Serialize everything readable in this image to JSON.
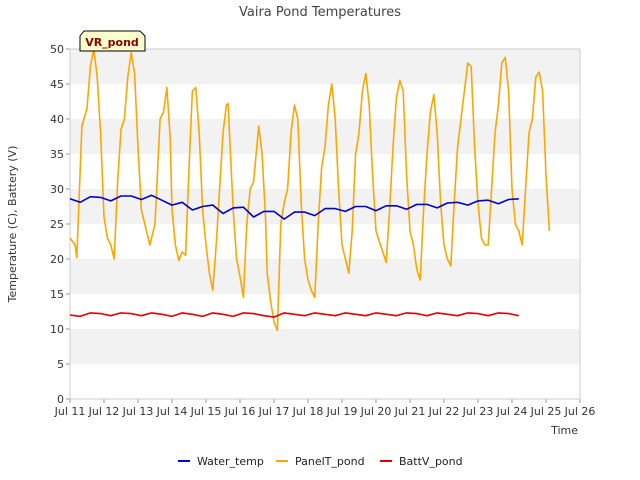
{
  "chart_data": {
    "type": "line",
    "title": "Vaira Pond Temperatures",
    "xlabel": "Time",
    "ylabel": "Temperature (C), Battery (V)",
    "site_label": "VR_pond",
    "xlim": [
      11,
      26
    ],
    "ylim": [
      0,
      50
    ],
    "x_ticks": [
      {
        "x": 11,
        "label": "Jul 11"
      },
      {
        "x": 12,
        "label": "Jul 12"
      },
      {
        "x": 13,
        "label": "Jul 13"
      },
      {
        "x": 14,
        "label": "Jul 14"
      },
      {
        "x": 15,
        "label": "Jul 15"
      },
      {
        "x": 16,
        "label": "Jul 16"
      },
      {
        "x": 17,
        "label": "Jul 17"
      },
      {
        "x": 18,
        "label": "Jul 18"
      },
      {
        "x": 19,
        "label": "Jul 19"
      },
      {
        "x": 20,
        "label": "Jul 20"
      },
      {
        "x": 21,
        "label": "Jul 21"
      },
      {
        "x": 22,
        "label": "Jul 22"
      },
      {
        "x": 23,
        "label": "Jul 23"
      },
      {
        "x": 24,
        "label": "Jul 24"
      },
      {
        "x": 25,
        "label": "Jul 25"
      },
      {
        "x": 26,
        "label": "Jul 26"
      }
    ],
    "y_ticks": [
      0,
      5,
      10,
      15,
      20,
      25,
      30,
      35,
      40,
      45,
      50
    ],
    "grid": "horizontal bands",
    "legend_position": "bottom",
    "series": [
      {
        "name": "Water_temp",
        "color": "#0000cc",
        "points": [
          [
            11.0,
            28.6
          ],
          [
            11.3,
            28.1
          ],
          [
            11.6,
            28.9
          ],
          [
            11.9,
            28.8
          ],
          [
            12.2,
            28.3
          ],
          [
            12.5,
            29.0
          ],
          [
            12.8,
            29.0
          ],
          [
            13.1,
            28.5
          ],
          [
            13.4,
            29.1
          ],
          [
            13.7,
            28.4
          ],
          [
            14.0,
            27.7
          ],
          [
            14.3,
            28.1
          ],
          [
            14.6,
            27.0
          ],
          [
            14.9,
            27.5
          ],
          [
            15.2,
            27.7
          ],
          [
            15.5,
            26.5
          ],
          [
            15.8,
            27.3
          ],
          [
            16.1,
            27.4
          ],
          [
            16.4,
            26.0
          ],
          [
            16.7,
            26.8
          ],
          [
            17.0,
            26.8
          ],
          [
            17.3,
            25.7
          ],
          [
            17.6,
            26.7
          ],
          [
            17.9,
            26.7
          ],
          [
            18.2,
            26.2
          ],
          [
            18.5,
            27.2
          ],
          [
            18.8,
            27.2
          ],
          [
            19.1,
            26.8
          ],
          [
            19.4,
            27.5
          ],
          [
            19.7,
            27.5
          ],
          [
            20.0,
            26.9
          ],
          [
            20.3,
            27.6
          ],
          [
            20.6,
            27.6
          ],
          [
            20.9,
            27.1
          ],
          [
            21.2,
            27.8
          ],
          [
            21.5,
            27.8
          ],
          [
            21.8,
            27.3
          ],
          [
            22.1,
            28.0
          ],
          [
            22.4,
            28.1
          ],
          [
            22.7,
            27.7
          ],
          [
            23.0,
            28.3
          ],
          [
            23.3,
            28.4
          ],
          [
            23.6,
            27.9
          ],
          [
            23.9,
            28.5
          ],
          [
            24.2,
            28.6
          ]
        ]
      },
      {
        "name": "PanelT_pond",
        "color": "#ffa500",
        "points": [
          [
            11.0,
            23.0
          ],
          [
            11.15,
            22.0
          ],
          [
            11.2,
            20.2
          ],
          [
            11.35,
            39.0
          ],
          [
            11.5,
            41.5
          ],
          [
            11.6,
            47.5
          ],
          [
            11.7,
            50.0
          ],
          [
            11.8,
            46.0
          ],
          [
            11.9,
            38.0
          ],
          [
            12.0,
            26.0
          ],
          [
            12.1,
            23.0
          ],
          [
            12.2,
            22.0
          ],
          [
            12.3,
            20.0
          ],
          [
            12.4,
            31.0
          ],
          [
            12.5,
            38.5
          ],
          [
            12.6,
            40.0
          ],
          [
            12.7,
            46.0
          ],
          [
            12.8,
            49.5
          ],
          [
            12.9,
            46.5
          ],
          [
            13.0,
            36.0
          ],
          [
            13.1,
            27.0
          ],
          [
            13.2,
            25.0
          ],
          [
            13.35,
            22.0
          ],
          [
            13.5,
            25.0
          ],
          [
            13.65,
            40.0
          ],
          [
            13.75,
            41.0
          ],
          [
            13.85,
            44.5
          ],
          [
            13.95,
            37.0
          ],
          [
            14.0,
            27.0
          ],
          [
            14.1,
            22.0
          ],
          [
            14.2,
            19.8
          ],
          [
            14.3,
            21.0
          ],
          [
            14.4,
            20.5
          ],
          [
            14.5,
            33.0
          ],
          [
            14.6,
            44.0
          ],
          [
            14.7,
            44.5
          ],
          [
            14.8,
            38.0
          ],
          [
            14.9,
            27.0
          ],
          [
            15.0,
            22.0
          ],
          [
            15.1,
            18.0
          ],
          [
            15.2,
            15.5
          ],
          [
            15.3,
            22.0
          ],
          [
            15.4,
            30.0
          ],
          [
            15.5,
            38.0
          ],
          [
            15.6,
            42.0
          ],
          [
            15.65,
            42.2
          ],
          [
            15.7,
            37.0
          ],
          [
            15.8,
            27.0
          ],
          [
            15.9,
            20.0
          ],
          [
            16.0,
            17.5
          ],
          [
            16.1,
            14.5
          ],
          [
            16.2,
            25.0
          ],
          [
            16.3,
            30.0
          ],
          [
            16.4,
            31.0
          ],
          [
            16.55,
            39.0
          ],
          [
            16.65,
            35.0
          ],
          [
            16.75,
            26.0
          ],
          [
            16.8,
            18.0
          ],
          [
            16.9,
            14.0
          ],
          [
            17.0,
            11.0
          ],
          [
            17.1,
            9.8
          ],
          [
            17.2,
            25.0
          ],
          [
            17.3,
            28.0
          ],
          [
            17.4,
            30.0
          ],
          [
            17.5,
            38.0
          ],
          [
            17.6,
            42.0
          ],
          [
            17.7,
            40.0
          ],
          [
            17.8,
            28.0
          ],
          [
            17.9,
            20.0
          ],
          [
            18.0,
            17.0
          ],
          [
            18.1,
            15.5
          ],
          [
            18.2,
            14.5
          ],
          [
            18.3,
            25.0
          ],
          [
            18.4,
            33.0
          ],
          [
            18.5,
            36.0
          ],
          [
            18.6,
            42.0
          ],
          [
            18.7,
            45.0
          ],
          [
            18.8,
            40.0
          ],
          [
            18.9,
            30.0
          ],
          [
            19.0,
            22.0
          ],
          [
            19.1,
            20.0
          ],
          [
            19.2,
            18.0
          ],
          [
            19.3,
            24.0
          ],
          [
            19.4,
            35.0
          ],
          [
            19.5,
            38.0
          ],
          [
            19.6,
            44.0
          ],
          [
            19.7,
            46.5
          ],
          [
            19.8,
            42.0
          ],
          [
            19.9,
            32.0
          ],
          [
            20.0,
            24.0
          ],
          [
            20.1,
            22.5
          ],
          [
            20.2,
            21.0
          ],
          [
            20.3,
            19.5
          ],
          [
            20.4,
            27.0
          ],
          [
            20.5,
            36.0
          ],
          [
            20.6,
            43.0
          ],
          [
            20.7,
            45.5
          ],
          [
            20.8,
            44.0
          ],
          [
            20.9,
            32.0
          ],
          [
            21.0,
            24.0
          ],
          [
            21.1,
            22.0
          ],
          [
            21.2,
            18.5
          ],
          [
            21.3,
            17.0
          ],
          [
            21.4,
            27.0
          ],
          [
            21.5,
            35.0
          ],
          [
            21.6,
            41.0
          ],
          [
            21.7,
            43.5
          ],
          [
            21.8,
            38.0
          ],
          [
            21.9,
            28.0
          ],
          [
            22.0,
            22.0
          ],
          [
            22.1,
            20.0
          ],
          [
            22.2,
            19.0
          ],
          [
            22.3,
            28.0
          ],
          [
            22.4,
            36.0
          ],
          [
            22.5,
            40.0
          ],
          [
            22.6,
            44.0
          ],
          [
            22.7,
            48.0
          ],
          [
            22.8,
            47.5
          ],
          [
            22.9,
            36.0
          ],
          [
            23.0,
            28.0
          ],
          [
            23.1,
            23.0
          ],
          [
            23.2,
            22.0
          ],
          [
            23.3,
            22.0
          ],
          [
            23.4,
            30.0
          ],
          [
            23.5,
            38.0
          ],
          [
            23.6,
            42.0
          ],
          [
            23.7,
            48.0
          ],
          [
            23.8,
            48.8
          ],
          [
            23.9,
            44.0
          ],
          [
            24.0,
            30.0
          ],
          [
            24.1,
            25.0
          ],
          [
            24.2,
            24.0
          ],
          [
            24.3,
            22.0
          ],
          [
            24.4,
            30.0
          ],
          [
            24.5,
            38.0
          ],
          [
            24.6,
            40.0
          ],
          [
            24.7,
            46.0
          ],
          [
            24.8,
            46.7
          ],
          [
            24.9,
            44.0
          ],
          [
            25.0,
            32.0
          ],
          [
            25.1,
            24.0
          ]
        ]
      },
      {
        "name": "BattV_pond",
        "color": "#e00000",
        "points": [
          [
            11.0,
            12.0
          ],
          [
            11.3,
            11.8
          ],
          [
            11.6,
            12.3
          ],
          [
            11.9,
            12.2
          ],
          [
            12.2,
            11.9
          ],
          [
            12.5,
            12.3
          ],
          [
            12.8,
            12.2
          ],
          [
            13.1,
            11.9
          ],
          [
            13.4,
            12.3
          ],
          [
            13.7,
            12.1
          ],
          [
            14.0,
            11.8
          ],
          [
            14.3,
            12.3
          ],
          [
            14.6,
            12.1
          ],
          [
            14.9,
            11.8
          ],
          [
            15.2,
            12.3
          ],
          [
            15.5,
            12.1
          ],
          [
            15.8,
            11.8
          ],
          [
            16.1,
            12.3
          ],
          [
            16.4,
            12.2
          ],
          [
            16.7,
            11.9
          ],
          [
            17.0,
            11.7
          ],
          [
            17.3,
            12.3
          ],
          [
            17.6,
            12.1
          ],
          [
            17.9,
            11.9
          ],
          [
            18.2,
            12.3
          ],
          [
            18.5,
            12.1
          ],
          [
            18.8,
            11.9
          ],
          [
            19.1,
            12.3
          ],
          [
            19.4,
            12.1
          ],
          [
            19.7,
            11.9
          ],
          [
            20.0,
            12.3
          ],
          [
            20.3,
            12.1
          ],
          [
            20.6,
            11.9
          ],
          [
            20.9,
            12.3
          ],
          [
            21.2,
            12.2
          ],
          [
            21.5,
            11.9
          ],
          [
            21.8,
            12.3
          ],
          [
            22.1,
            12.1
          ],
          [
            22.4,
            11.9
          ],
          [
            22.7,
            12.3
          ],
          [
            23.0,
            12.2
          ],
          [
            23.3,
            11.9
          ],
          [
            23.6,
            12.3
          ],
          [
            23.9,
            12.2
          ],
          [
            24.2,
            11.9
          ]
        ]
      }
    ]
  }
}
